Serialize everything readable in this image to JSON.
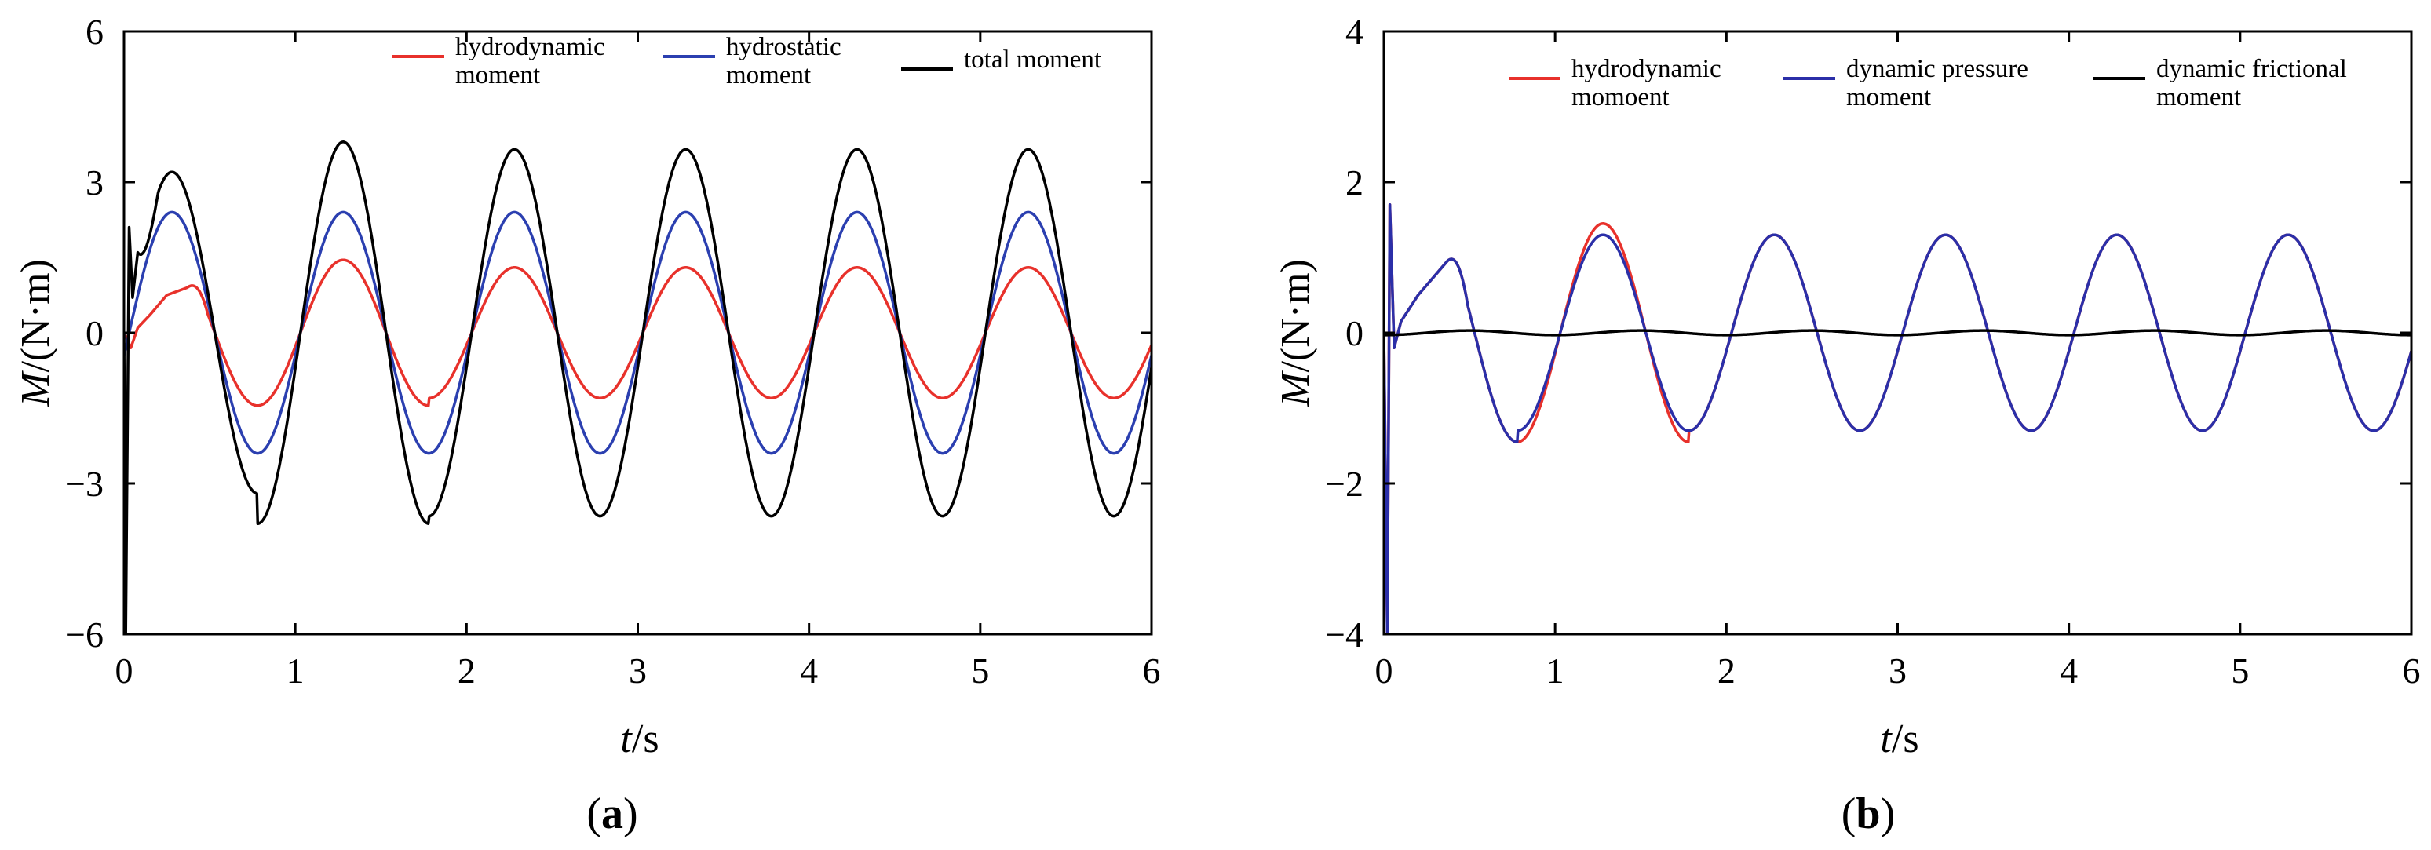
{
  "chart_data": [
    {
      "panel": "(a)",
      "panel_label_letter": "a",
      "type": "line",
      "xlim": [
        0,
        6
      ],
      "ylim": [
        -6,
        6
      ],
      "xticks": [
        0,
        1,
        2,
        3,
        4,
        5,
        6
      ],
      "xtick_labels": [
        "0",
        "1",
        "2",
        "3",
        "4",
        "5",
        "6"
      ],
      "yticks": [
        -6,
        -3,
        0,
        3,
        6
      ],
      "ytick_labels": [
        "−6",
        "−3",
        "0",
        "3",
        "6"
      ],
      "xlabel_var": "t",
      "xlabel_unit": "/s",
      "ylabel_var": "M",
      "ylabel_unit": "/(N·m)",
      "legend_position": "top-right",
      "series": [
        {
          "name_lines": [
            "hydrodynamic",
            "moment"
          ],
          "color": "#e8312b",
          "model": "sine",
          "amplitude": 1.3,
          "amp_first": 1.45,
          "period": 1.0,
          "phase_peak": 0.28,
          "offset": 0,
          "startup": [
            [
              0,
              0
            ],
            [
              0.04,
              -0.3
            ],
            [
              0.08,
              0.1
            ],
            [
              0.15,
              0.35
            ],
            [
              0.25,
              0.75
            ],
            [
              0.37,
              0.9
            ]
          ]
        },
        {
          "name_lines": [
            "hydrostatic",
            "moment"
          ],
          "color": "#2b3fb0",
          "model": "sine",
          "amplitude": 2.4,
          "period": 1.0,
          "phase_peak": 0.28,
          "offset": 0,
          "startup": [
            [
              0,
              0
            ]
          ]
        },
        {
          "name_lines": [
            "total moment"
          ],
          "color": "#000000",
          "model": "sine",
          "amplitude": 3.65,
          "amp_first": 3.2,
          "amp_second": 3.8,
          "period": 1.0,
          "phase_peak": 0.28,
          "offset": 0,
          "startup": [
            [
              0,
              0
            ],
            [
              0.01,
              -6
            ],
            [
              0.03,
              2.1
            ],
            [
              0.05,
              0.7
            ],
            [
              0.08,
              1.6
            ]
          ]
        }
      ],
      "series_extrema": {
        "hydrodynamic": {
          "max": [
            0.37,
            1.45,
            1.3,
            1.3,
            1.3,
            1.3
          ],
          "min": -1.4
        },
        "hydrostatic": {
          "max": 2.4,
          "min": -2.4
        },
        "total": {
          "max": [
            3.2,
            3.85,
            3.65,
            3.65,
            3.65,
            3.65
          ],
          "min": -3.7
        }
      }
    },
    {
      "panel": "(b)",
      "panel_label_letter": "b",
      "type": "line",
      "xlim": [
        0,
        6
      ],
      "ylim": [
        -4,
        4
      ],
      "xticks": [
        0,
        1,
        2,
        3,
        4,
        5,
        6
      ],
      "xtick_labels": [
        "0",
        "1",
        "2",
        "3",
        "4",
        "5",
        "6"
      ],
      "yticks": [
        -4,
        -2,
        0,
        2,
        4
      ],
      "ytick_labels": [
        "−4",
        "−2",
        "0",
        "2",
        "4"
      ],
      "xlabel_var": "t",
      "xlabel_unit": "/s",
      "ylabel_var": "M",
      "ylabel_unit": "/(N·m)",
      "legend_position": "top",
      "series": [
        {
          "name_lines": [
            "hydrodynamic",
            "momoent"
          ],
          "color": "#e8312b",
          "model": "sine",
          "amplitude": 1.3,
          "amp_first": 1.45,
          "period": 1.0,
          "phase_peak": 0.28,
          "offset": 0,
          "startup": [
            [
              0,
              0
            ],
            [
              0.02,
              -4.0
            ],
            [
              0.035,
              1.7
            ],
            [
              0.06,
              -0.2
            ],
            [
              0.1,
              0.15
            ],
            [
              0.2,
              0.5
            ],
            [
              0.37,
              0.95
            ]
          ]
        },
        {
          "name_lines": [
            "dynamic pressure",
            "moment"
          ],
          "color": "#2b2fa8",
          "model": "sine",
          "amplitude": 1.3,
          "amp_first": 1.45,
          "period": 1.0,
          "phase_peak": 0.28,
          "offset": 0,
          "startup": [
            [
              0,
              0
            ],
            [
              0.02,
              -4.0
            ],
            [
              0.035,
              1.7
            ],
            [
              0.06,
              -0.2
            ],
            [
              0.1,
              0.15
            ],
            [
              0.2,
              0.5
            ],
            [
              0.37,
              0.95
            ]
          ]
        },
        {
          "name_lines": [
            "dynamic frictional",
            "moment"
          ],
          "color": "#000000",
          "model": "sine",
          "amplitude": 0.03,
          "period": 1.0,
          "phase_peak": 0.5,
          "offset": 0,
          "startup": [
            [
              0,
              0
            ]
          ]
        }
      ]
    }
  ]
}
